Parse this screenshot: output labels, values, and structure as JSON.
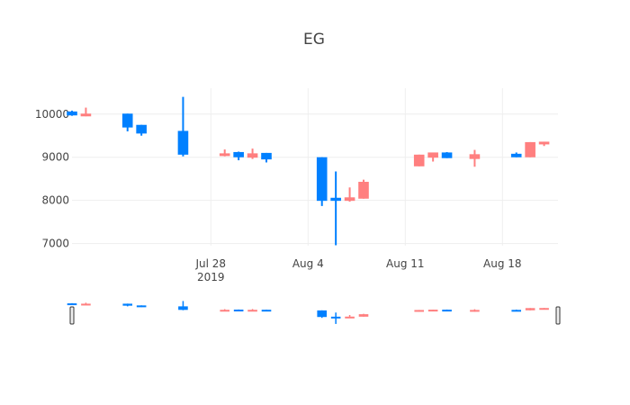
{
  "chart_data": {
    "type": "candlestick",
    "title": "EG",
    "xlabel": "",
    "ylabel": "",
    "xlim": [
      "2019-07-18",
      "2019-08-22"
    ],
    "ylim": [
      6950,
      10600
    ],
    "y_ticks": [
      {
        "value": 7000,
        "label": "7000"
      },
      {
        "value": 8000,
        "label": "8000"
      },
      {
        "value": 9000,
        "label": "9000"
      },
      {
        "value": 10000,
        "label": "10000"
      }
    ],
    "x_ticks": [
      {
        "date": "2019-07-28",
        "label": "Jul 28",
        "sublabel": "2019"
      },
      {
        "date": "2019-08-04",
        "label": "Aug 4",
        "sublabel": ""
      },
      {
        "date": "2019-08-11",
        "label": "Aug 11",
        "sublabel": ""
      },
      {
        "date": "2019-08-18",
        "label": "Aug 18",
        "sublabel": ""
      }
    ],
    "grid": true,
    "legend": "none",
    "rangeslider": true,
    "colors": {
      "increasing": "#FF7F7F",
      "decreasing": "#0080FF",
      "grid": "#EEEEEE",
      "tick_text": "#444444"
    },
    "candles": [
      {
        "date": "2019-07-18",
        "open": 10050,
        "high": 10080,
        "low": 9960,
        "close": 9980
      },
      {
        "date": "2019-07-19",
        "open": 9970,
        "high": 10150,
        "low": 9950,
        "close": 10000
      },
      {
        "date": "2019-07-22",
        "open": 10000,
        "high": 10010,
        "low": 9600,
        "close": 9700
      },
      {
        "date": "2019-07-23",
        "open": 9740,
        "high": 9750,
        "low": 9500,
        "close": 9560
      },
      {
        "date": "2019-07-26",
        "open": 9600,
        "high": 10400,
        "low": 9020,
        "close": 9070
      },
      {
        "date": "2019-07-29",
        "open": 9050,
        "high": 9180,
        "low": 9020,
        "close": 9080
      },
      {
        "date": "2019-07-30",
        "open": 9110,
        "high": 9130,
        "low": 8930,
        "close": 9010
      },
      {
        "date": "2019-07-31",
        "open": 9000,
        "high": 9200,
        "low": 8960,
        "close": 9080
      },
      {
        "date": "2019-08-01",
        "open": 9090,
        "high": 9100,
        "low": 8880,
        "close": 8960
      },
      {
        "date": "2019-08-05",
        "open": 8990,
        "high": 9000,
        "low": 7870,
        "close": 8000
      },
      {
        "date": "2019-08-06",
        "open": 8050,
        "high": 8670,
        "low": 6960,
        "close": 8000
      },
      {
        "date": "2019-08-07",
        "open": 8000,
        "high": 8300,
        "low": 7970,
        "close": 8060
      },
      {
        "date": "2019-08-08",
        "open": 8050,
        "high": 8480,
        "low": 8040,
        "close": 8420
      },
      {
        "date": "2019-08-12",
        "open": 8800,
        "high": 9060,
        "low": 8790,
        "close": 9050
      },
      {
        "date": "2019-08-13",
        "open": 9000,
        "high": 9100,
        "low": 8900,
        "close": 9100
      },
      {
        "date": "2019-08-14",
        "open": 9100,
        "high": 9120,
        "low": 8980,
        "close": 8990
      },
      {
        "date": "2019-08-16",
        "open": 8970,
        "high": 9170,
        "low": 8780,
        "close": 9060
      },
      {
        "date": "2019-08-19",
        "open": 9070,
        "high": 9110,
        "low": 9000,
        "close": 9010
      },
      {
        "date": "2019-08-20",
        "open": 9010,
        "high": 9350,
        "low": 9000,
        "close": 9340
      },
      {
        "date": "2019-08-21",
        "open": 9330,
        "high": 9360,
        "low": 9260,
        "close": 9350
      }
    ]
  }
}
